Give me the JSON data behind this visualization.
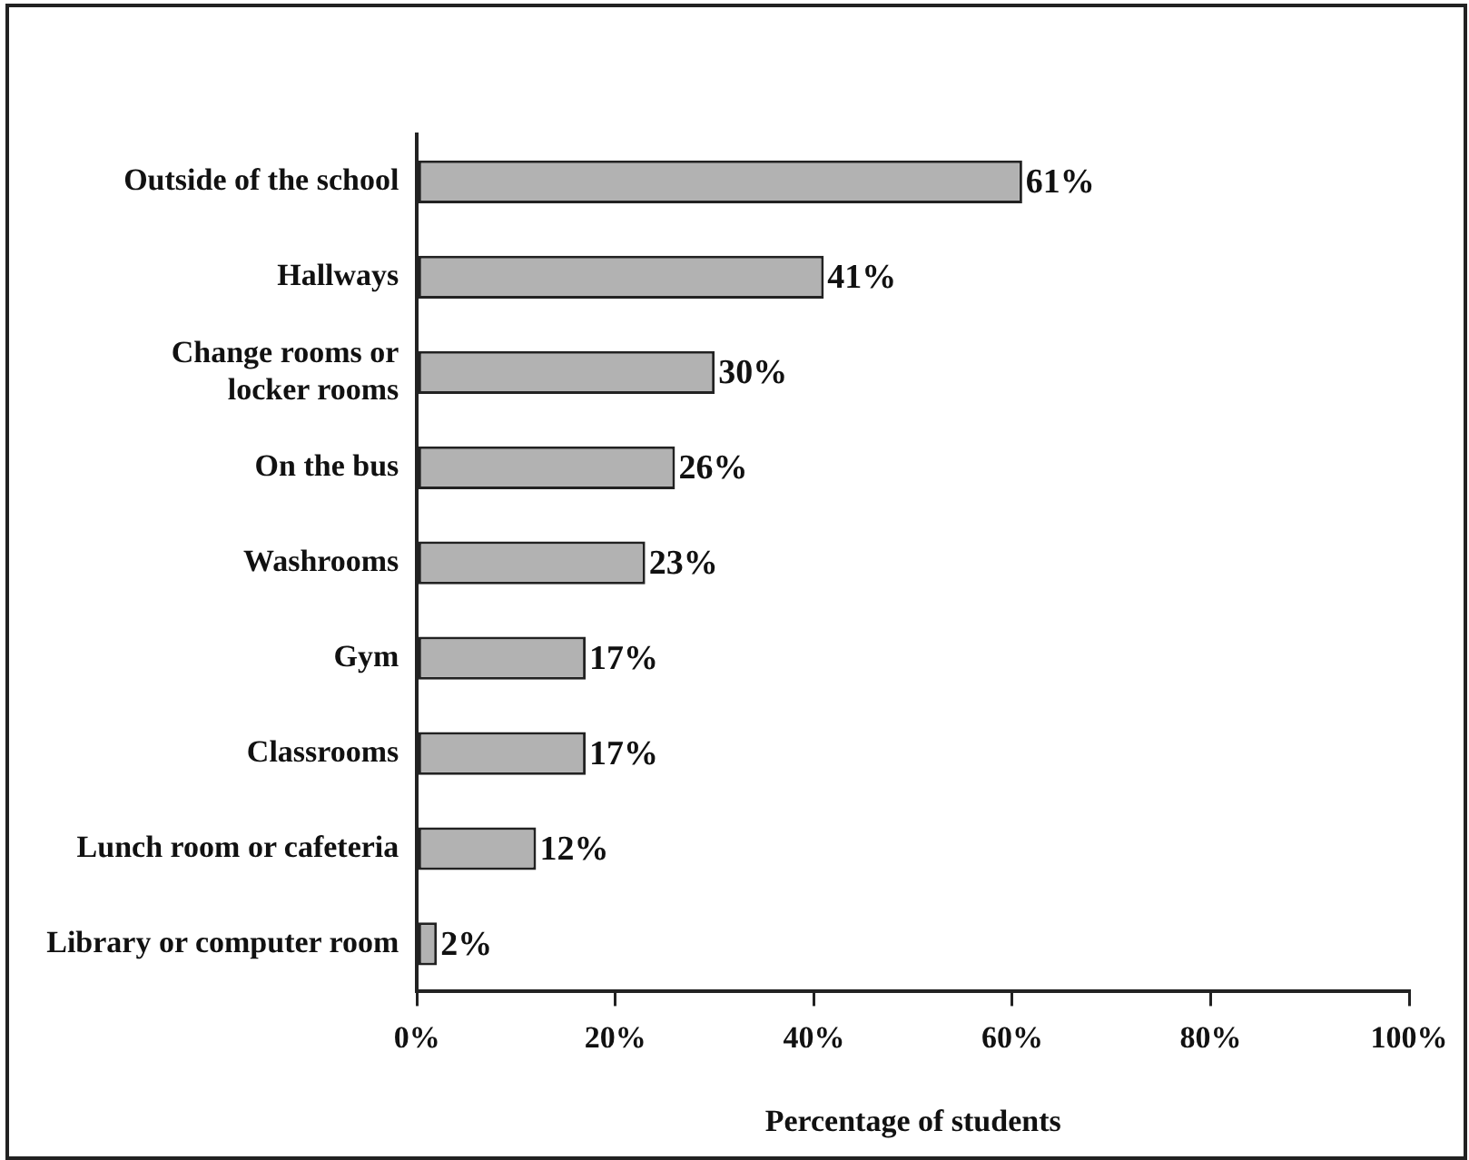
{
  "chart_data": {
    "type": "bar",
    "orientation": "horizontal",
    "xlabel": "Percentage of students",
    "categories": [
      "Outside of the school",
      "Hallways",
      "Change rooms or\nlocker rooms",
      "On the bus",
      "Washrooms",
      "Gym",
      "Classrooms",
      "Lunch room or cafeteria",
      "Library or computer room"
    ],
    "values": [
      61,
      41,
      30,
      26,
      23,
      17,
      17,
      12,
      2
    ],
    "value_labels": [
      "61%",
      "41%",
      "30%",
      "26%",
      "23%",
      "17%",
      "17%",
      "12%",
      "2%"
    ],
    "color": "#b2b2b2",
    "xlim": [
      0,
      100
    ],
    "xticks": [
      {
        "value": 0,
        "label": "0%"
      },
      {
        "value": 20,
        "label": "20%"
      },
      {
        "value": 40,
        "label": "40%"
      },
      {
        "value": 60,
        "label": "60%"
      },
      {
        "value": 80,
        "label": "80%"
      },
      {
        "value": 100,
        "label": "100%"
      }
    ],
    "grid": false,
    "legend": false
  }
}
